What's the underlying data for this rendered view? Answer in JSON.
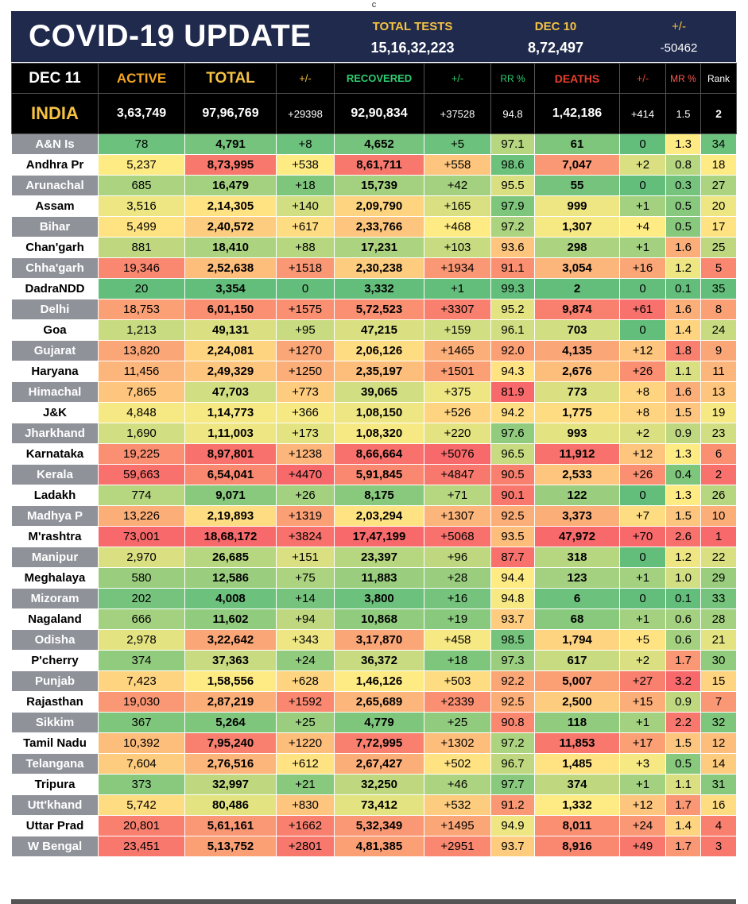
{
  "top_mark": "c",
  "header": {
    "title": "COVID-19 UPDATE",
    "total_tests_label": "TOTAL TESTS",
    "total_tests_value": "15,16,32,223",
    "prev_date_label": "DEC 10",
    "prev_date_value": "8,72,497",
    "diff_label": "+/-",
    "diff_value": "-50462"
  },
  "columns": {
    "date": "DEC 11",
    "active": "ACTIVE",
    "total": "TOTAL",
    "total_diff": "+/-",
    "recovered": "RECOVERED",
    "recovered_diff": "+/-",
    "rr": "RR %",
    "deaths": "DEATHS",
    "deaths_diff": "+/-",
    "mr": "MR %",
    "rank": "Rank"
  },
  "india": {
    "name": "INDIA",
    "active": "3,63,749",
    "total": "97,96,769",
    "total_diff": "+29398",
    "recovered": "92,90,834",
    "recovered_diff": "+37528",
    "rr": "94.8",
    "deaths": "1,42,186",
    "deaths_diff": "+414",
    "mr": "1.5",
    "rank": "2"
  },
  "rows": [
    {
      "name": "A&N Is",
      "active": "78",
      "total": "4,791",
      "total_diff": "+8",
      "recovered": "4,652",
      "recovered_diff": "+5",
      "rr": "97.1",
      "deaths": "61",
      "deaths_diff": "0",
      "mr": "1.3",
      "rank": "34"
    },
    {
      "name": "Andhra Pr",
      "active": "5,237",
      "total": "8,73,995",
      "total_diff": "+538",
      "recovered": "8,61,711",
      "recovered_diff": "+558",
      "rr": "98.6",
      "deaths": "7,047",
      "deaths_diff": "+2",
      "mr": "0.8",
      "rank": "18"
    },
    {
      "name": "Arunachal",
      "active": "685",
      "total": "16,479",
      "total_diff": "+18",
      "recovered": "15,739",
      "recovered_diff": "+42",
      "rr": "95.5",
      "deaths": "55",
      "deaths_diff": "0",
      "mr": "0.3",
      "rank": "27"
    },
    {
      "name": "Assam",
      "active": "3,516",
      "total": "2,14,305",
      "total_diff": "+140",
      "recovered": "2,09,790",
      "recovered_diff": "+165",
      "rr": "97.9",
      "deaths": "999",
      "deaths_diff": "+1",
      "mr": "0.5",
      "rank": "20"
    },
    {
      "name": "Bihar",
      "active": "5,499",
      "total": "2,40,572",
      "total_diff": "+617",
      "recovered": "2,33,766",
      "recovered_diff": "+468",
      "rr": "97.2",
      "deaths": "1,307",
      "deaths_diff": "+4",
      "mr": "0.5",
      "rank": "17"
    },
    {
      "name": "Chan'garh",
      "active": "881",
      "total": "18,410",
      "total_diff": "+88",
      "recovered": "17,231",
      "recovered_diff": "+103",
      "rr": "93.6",
      "deaths": "298",
      "deaths_diff": "+1",
      "mr": "1.6",
      "rank": "25"
    },
    {
      "name": "Chha'garh",
      "active": "19,346",
      "total": "2,52,638",
      "total_diff": "+1518",
      "recovered": "2,30,238",
      "recovered_diff": "+1934",
      "rr": "91.1",
      "deaths": "3,054",
      "deaths_diff": "+16",
      "mr": "1.2",
      "rank": "5"
    },
    {
      "name": "DadraNDD",
      "active": "20",
      "total": "3,354",
      "total_diff": "0",
      "recovered": "3,332",
      "recovered_diff": "+1",
      "rr": "99.3",
      "deaths": "2",
      "deaths_diff": "0",
      "mr": "0.1",
      "rank": "35"
    },
    {
      "name": "Delhi",
      "active": "18,753",
      "total": "6,01,150",
      "total_diff": "+1575",
      "recovered": "5,72,523",
      "recovered_diff": "+3307",
      "rr": "95.2",
      "deaths": "9,874",
      "deaths_diff": "+61",
      "mr": "1.6",
      "rank": "8"
    },
    {
      "name": "Goa",
      "active": "1,213",
      "total": "49,131",
      "total_diff": "+95",
      "recovered": "47,215",
      "recovered_diff": "+159",
      "rr": "96.1",
      "deaths": "703",
      "deaths_diff": "0",
      "mr": "1.4",
      "rank": "24"
    },
    {
      "name": "Gujarat",
      "active": "13,820",
      "total": "2,24,081",
      "total_diff": "+1270",
      "recovered": "2,06,126",
      "recovered_diff": "+1465",
      "rr": "92.0",
      "deaths": "4,135",
      "deaths_diff": "+12",
      "mr": "1.8",
      "rank": "9"
    },
    {
      "name": "Haryana",
      "active": "11,456",
      "total": "2,49,329",
      "total_diff": "+1250",
      "recovered": "2,35,197",
      "recovered_diff": "+1501",
      "rr": "94.3",
      "deaths": "2,676",
      "deaths_diff": "+26",
      "mr": "1.1",
      "rank": "11"
    },
    {
      "name": "Himachal",
      "active": "7,865",
      "total": "47,703",
      "total_diff": "+773",
      "recovered": "39,065",
      "recovered_diff": "+375",
      "rr": "81.9",
      "deaths": "773",
      "deaths_diff": "+8",
      "mr": "1.6",
      "rank": "13"
    },
    {
      "name": "J&K",
      "active": "4,848",
      "total": "1,14,773",
      "total_diff": "+366",
      "recovered": "1,08,150",
      "recovered_diff": "+526",
      "rr": "94.2",
      "deaths": "1,775",
      "deaths_diff": "+8",
      "mr": "1.5",
      "rank": "19"
    },
    {
      "name": "Jharkhand",
      "active": "1,690",
      "total": "1,11,003",
      "total_diff": "+173",
      "recovered": "1,08,320",
      "recovered_diff": "+220",
      "rr": "97.6",
      "deaths": "993",
      "deaths_diff": "+2",
      "mr": "0.9",
      "rank": "23"
    },
    {
      "name": "Karnataka",
      "active": "19,225",
      "total": "8,97,801",
      "total_diff": "+1238",
      "recovered": "8,66,664",
      "recovered_diff": "+5076",
      "rr": "96.5",
      "deaths": "11,912",
      "deaths_diff": "+12",
      "mr": "1.3",
      "rank": "6"
    },
    {
      "name": "Kerala",
      "active": "59,663",
      "total": "6,54,041",
      "total_diff": "+4470",
      "recovered": "5,91,845",
      "recovered_diff": "+4847",
      "rr": "90.5",
      "deaths": "2,533",
      "deaths_diff": "+26",
      "mr": "0.4",
      "rank": "2"
    },
    {
      "name": "Ladakh",
      "active": "774",
      "total": "9,071",
      "total_diff": "+26",
      "recovered": "8,175",
      "recovered_diff": "+71",
      "rr": "90.1",
      "deaths": "122",
      "deaths_diff": "0",
      "mr": "1.3",
      "rank": "26"
    },
    {
      "name": "Madhya P",
      "active": "13,226",
      "total": "2,19,893",
      "total_diff": "+1319",
      "recovered": "2,03,294",
      "recovered_diff": "+1307",
      "rr": "92.5",
      "deaths": "3,373",
      "deaths_diff": "+7",
      "mr": "1.5",
      "rank": "10"
    },
    {
      "name": "M'rashtra",
      "active": "73,001",
      "total": "18,68,172",
      "total_diff": "+3824",
      "recovered": "17,47,199",
      "recovered_diff": "+5068",
      "rr": "93.5",
      "deaths": "47,972",
      "deaths_diff": "+70",
      "mr": "2.6",
      "rank": "1"
    },
    {
      "name": "Manipur",
      "active": "2,970",
      "total": "26,685",
      "total_diff": "+151",
      "recovered": "23,397",
      "recovered_diff": "+96",
      "rr": "87.7",
      "deaths": "318",
      "deaths_diff": "0",
      "mr": "1.2",
      "rank": "22"
    },
    {
      "name": "Meghalaya",
      "active": "580",
      "total": "12,586",
      "total_diff": "+75",
      "recovered": "11,883",
      "recovered_diff": "+28",
      "rr": "94.4",
      "deaths": "123",
      "deaths_diff": "+1",
      "mr": "1.0",
      "rank": "29"
    },
    {
      "name": "Mizoram",
      "active": "202",
      "total": "4,008",
      "total_diff": "+14",
      "recovered": "3,800",
      "recovered_diff": "+16",
      "rr": "94.8",
      "deaths": "6",
      "deaths_diff": "0",
      "mr": "0.1",
      "rank": "33"
    },
    {
      "name": "Nagaland",
      "active": "666",
      "total": "11,602",
      "total_diff": "+94",
      "recovered": "10,868",
      "recovered_diff": "+19",
      "rr": "93.7",
      "deaths": "68",
      "deaths_diff": "+1",
      "mr": "0.6",
      "rank": "28"
    },
    {
      "name": "Odisha",
      "active": "2,978",
      "total": "3,22,642",
      "total_diff": "+343",
      "recovered": "3,17,870",
      "recovered_diff": "+458",
      "rr": "98.5",
      "deaths": "1,794",
      "deaths_diff": "+5",
      "mr": "0.6",
      "rank": "21"
    },
    {
      "name": "P'cherry",
      "active": "374",
      "total": "37,363",
      "total_diff": "+24",
      "recovered": "36,372",
      "recovered_diff": "+18",
      "rr": "97.3",
      "deaths": "617",
      "deaths_diff": "+2",
      "mr": "1.7",
      "rank": "30"
    },
    {
      "name": "Punjab",
      "active": "7,423",
      "total": "1,58,556",
      "total_diff": "+628",
      "recovered": "1,46,126",
      "recovered_diff": "+503",
      "rr": "92.2",
      "deaths": "5,007",
      "deaths_diff": "+27",
      "mr": "3.2",
      "rank": "15"
    },
    {
      "name": "Rajasthan",
      "active": "19,030",
      "total": "2,87,219",
      "total_diff": "+1592",
      "recovered": "2,65,689",
      "recovered_diff": "+2339",
      "rr": "92.5",
      "deaths": "2,500",
      "deaths_diff": "+15",
      "mr": "0.9",
      "rank": "7"
    },
    {
      "name": "Sikkim",
      "active": "367",
      "total": "5,264",
      "total_diff": "+25",
      "recovered": "4,779",
      "recovered_diff": "+25",
      "rr": "90.8",
      "deaths": "118",
      "deaths_diff": "+1",
      "mr": "2.2",
      "rank": "32"
    },
    {
      "name": "Tamil Nadu",
      "active": "10,392",
      "total": "7,95,240",
      "total_diff": "+1220",
      "recovered": "7,72,995",
      "recovered_diff": "+1302",
      "rr": "97.2",
      "deaths": "11,853",
      "deaths_diff": "+17",
      "mr": "1.5",
      "rank": "12"
    },
    {
      "name": "Telangana",
      "active": "7,604",
      "total": "2,76,516",
      "total_diff": "+612",
      "recovered": "2,67,427",
      "recovered_diff": "+502",
      "rr": "96.7",
      "deaths": "1,485",
      "deaths_diff": "+3",
      "mr": "0.5",
      "rank": "14"
    },
    {
      "name": "Tripura",
      "active": "373",
      "total": "32,997",
      "total_diff": "+21",
      "recovered": "32,250",
      "recovered_diff": "+46",
      "rr": "97.7",
      "deaths": "374",
      "deaths_diff": "+1",
      "mr": "1.1",
      "rank": "31"
    },
    {
      "name": "Utt'khand",
      "active": "5,742",
      "total": "80,486",
      "total_diff": "+830",
      "recovered": "73,412",
      "recovered_diff": "+532",
      "rr": "91.2",
      "deaths": "1,332",
      "deaths_diff": "+12",
      "mr": "1.7",
      "rank": "16"
    },
    {
      "name": "Uttar Prad",
      "active": "20,801",
      "total": "5,61,161",
      "total_diff": "+1662",
      "recovered": "5,32,349",
      "recovered_diff": "+1495",
      "rr": "94.9",
      "deaths": "8,011",
      "deaths_diff": "+24",
      "mr": "1.4",
      "rank": "4"
    },
    {
      "name": "W Bengal",
      "active": "23,451",
      "total": "5,13,752",
      "total_diff": "+2801",
      "recovered": "4,81,385",
      "recovered_diff": "+2951",
      "rr": "93.7",
      "deaths": "8,916",
      "deaths_diff": "+49",
      "mr": "1.7",
      "rank": "3"
    }
  ],
  "colors": {
    "header_bg": "#1f2a4d",
    "title_text": "#ffffff",
    "active_label": "#f5a623",
    "total_label": "#f5c242",
    "recovered_label": "#2ecc71",
    "deaths_label": "#e8402c",
    "mr_label": "#ff5b4d",
    "india_label": "#f5c242",
    "scale_green": "#63be7b",
    "scale_yellow": "#ffeb84",
    "scale_red": "#f8696b",
    "alt_row_name_bg": "#8f9299"
  }
}
